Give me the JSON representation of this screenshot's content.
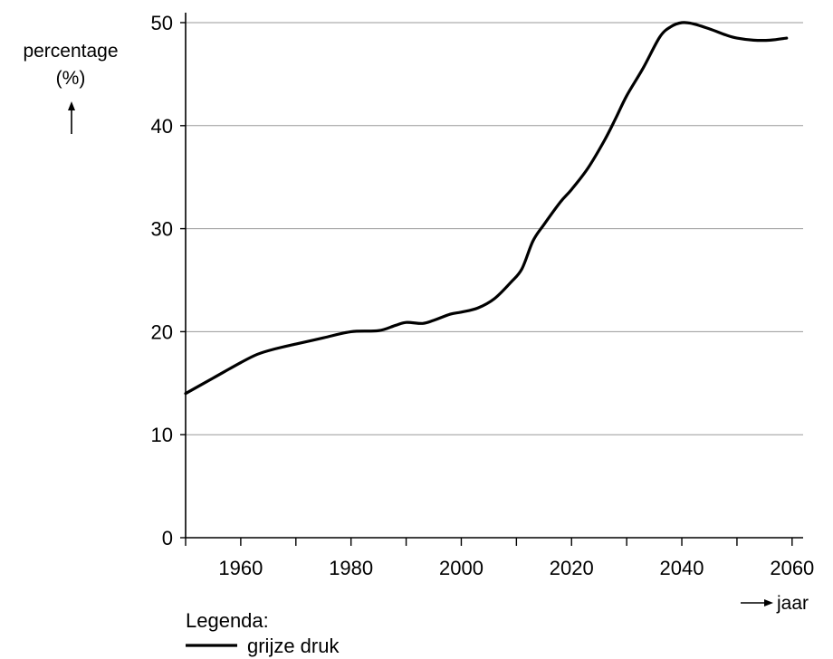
{
  "chart_data": {
    "type": "line",
    "ylabel": "percentage",
    "ylabel_unit": "(%)",
    "ylabel_arrow": "↑",
    "xlabel": "jaar",
    "xlabel_arrow": "⟶",
    "xlim": [
      1950,
      2062
    ],
    "ylim": [
      0,
      50
    ],
    "xticks": [
      1950,
      1960,
      1970,
      1980,
      1990,
      2000,
      2010,
      2020,
      2030,
      2040,
      2050,
      2060
    ],
    "xtick_labels": [
      "1960",
      "1980",
      "2000",
      "2020",
      "2040",
      "2060"
    ],
    "yticks": [
      0,
      10,
      20,
      30,
      40,
      50
    ],
    "ytick_labels": [
      "0",
      "10",
      "20",
      "30",
      "40",
      "50"
    ],
    "grid": "horizontal",
    "legend_title": "Legenda:",
    "legend_placement": "bottom-left",
    "series": [
      {
        "name": "grijze druk",
        "color": "#000000",
        "x": [
          1950,
          1955,
          1960,
          1963,
          1966,
          1970,
          1975,
          1980,
          1985,
          1988,
          1990,
          1993,
          1995,
          1998,
          2000,
          2003,
          2006,
          2009,
          2011,
          2013,
          2015,
          2018,
          2020,
          2023,
          2026,
          2028,
          2030,
          2033,
          2036,
          2038,
          2040,
          2042,
          2045,
          2048,
          2050,
          2053,
          2056,
          2059
        ],
        "values": [
          14.0,
          15.5,
          17.0,
          17.8,
          18.3,
          18.8,
          19.4,
          20.0,
          20.1,
          20.6,
          20.9,
          20.8,
          21.1,
          21.7,
          21.9,
          22.3,
          23.2,
          24.8,
          26.1,
          28.8,
          30.4,
          32.6,
          33.8,
          35.9,
          38.6,
          40.7,
          42.9,
          45.6,
          48.6,
          49.6,
          50.0,
          49.9,
          49.4,
          48.8,
          48.5,
          48.3,
          48.3,
          48.5
        ]
      }
    ]
  }
}
